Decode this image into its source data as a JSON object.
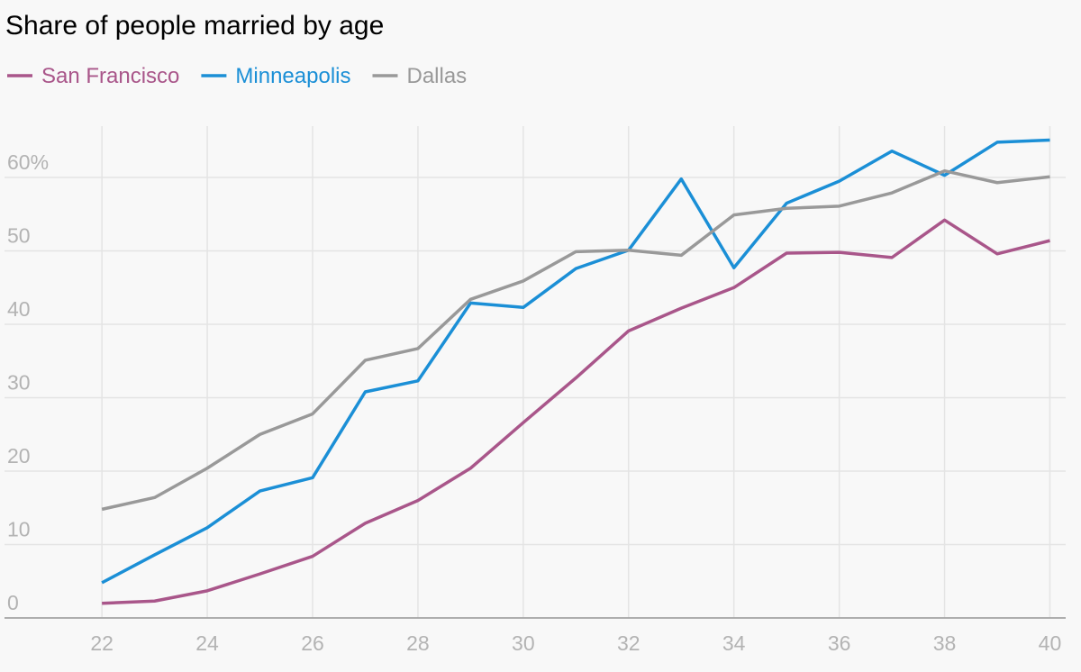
{
  "chart_data": {
    "type": "line",
    "title": "Share of people married by age",
    "x": [
      22,
      23,
      24,
      25,
      26,
      27,
      28,
      29,
      30,
      31,
      32,
      33,
      34,
      35,
      36,
      37,
      38,
      39,
      40
    ],
    "series": [
      {
        "name": "San Francisco",
        "color": "#a9568a",
        "values": [
          2.0,
          2.3,
          3.7,
          6.0,
          8.4,
          12.9,
          16.0,
          20.4,
          26.6,
          32.7,
          39.1,
          42.2,
          45.0,
          49.7,
          49.8,
          49.1,
          54.2,
          49.6,
          51.4
        ]
      },
      {
        "name": "Minneapolis",
        "color": "#1b8fd6",
        "values": [
          4.8,
          8.6,
          12.3,
          17.3,
          19.1,
          30.8,
          32.3,
          42.9,
          42.3,
          47.6,
          50.1,
          59.8,
          47.7,
          56.5,
          59.5,
          63.6,
          60.3,
          64.8,
          65.1
        ]
      },
      {
        "name": "Dallas",
        "color": "#999999",
        "values": [
          14.8,
          16.4,
          20.4,
          25.0,
          27.8,
          35.1,
          36.7,
          43.4,
          45.9,
          49.9,
          50.1,
          49.4,
          54.9,
          55.8,
          56.1,
          57.9,
          60.9,
          59.3,
          60.1
        ]
      }
    ],
    "xlim": [
      20.15,
      40.3
    ],
    "ylim": [
      0,
      67
    ],
    "xticks": [
      22,
      24,
      26,
      28,
      30,
      32,
      34,
      36,
      38,
      40
    ],
    "yticks": [
      0,
      10,
      20,
      30,
      40,
      50,
      {
        "value": 60,
        "label": "60%"
      }
    ],
    "grid": true,
    "legend": "top-left"
  }
}
